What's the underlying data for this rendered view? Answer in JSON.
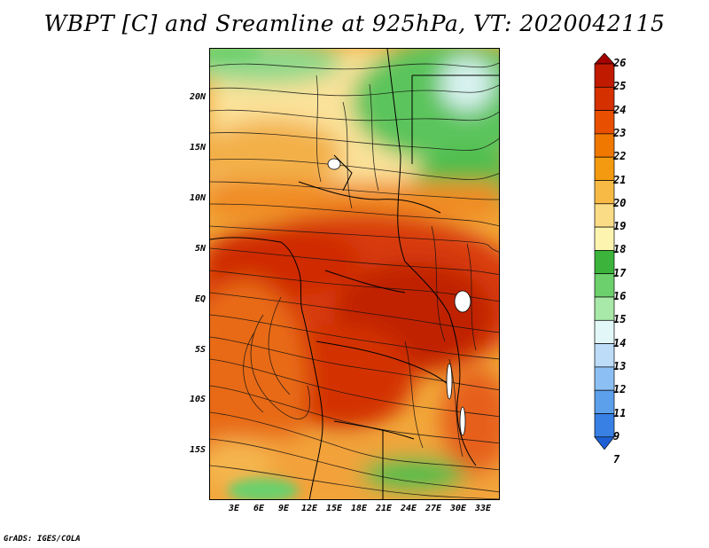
{
  "title": "WBPT [C] and Sreamline at 925hPa, VT: 2020042115",
  "credit": "GrADS: IGES/COLA",
  "map": {
    "region": "Central and Southern Africa",
    "variable": "Wet-bulb potential temperature",
    "units": "C",
    "level": "925hPa",
    "lat_labels": [
      "20N",
      "15N",
      "10N",
      "5N",
      "EQ",
      "5S",
      "10S",
      "15S"
    ],
    "lon_labels": [
      "3E",
      "6E",
      "9E",
      "12E",
      "15E",
      "18E",
      "21E",
      "24E",
      "27E",
      "30E",
      "33E"
    ]
  },
  "colorbar": {
    "labels": [
      "26",
      "25",
      "24",
      "23",
      "22",
      "21",
      "20",
      "19",
      "18",
      "17",
      "16",
      "15",
      "14",
      "13",
      "12",
      "11",
      "9",
      "7"
    ],
    "colors": [
      "#a50000",
      "#c01a00",
      "#d53000",
      "#e84f00",
      "#f07800",
      "#f49a10",
      "#f7bb45",
      "#fadc86",
      "#fdf4b0",
      "#3cb43c",
      "#6cd06c",
      "#a8e8a8",
      "#e2f8f8",
      "#bcdcf8",
      "#8cc0f4",
      "#5ca0ec",
      "#3880e4",
      "#1e60d4"
    ]
  }
}
